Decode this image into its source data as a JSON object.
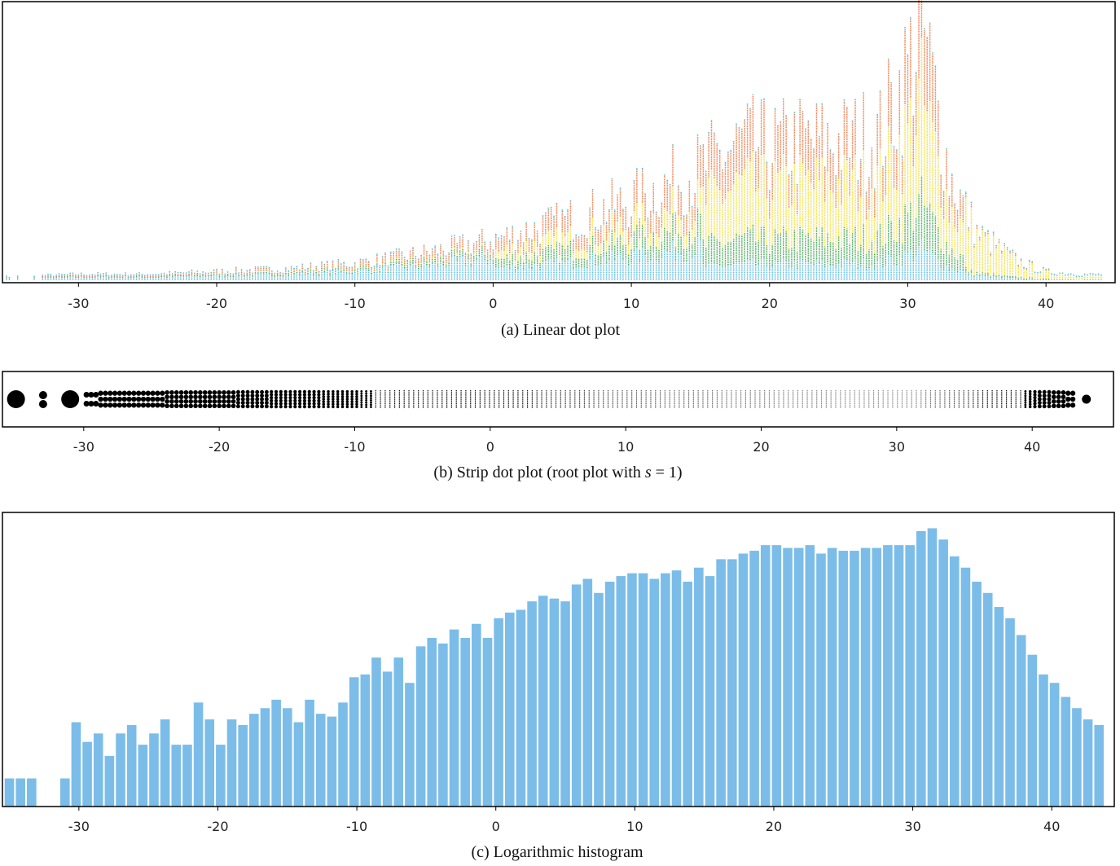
{
  "colors": {
    "frame": "#000000",
    "dot_palette": [
      "#5bc0e8",
      "#4caa5a",
      "#f2e04a",
      "#f08050"
    ],
    "strip_dot": "#000000",
    "hist_bar": "#7bbde8"
  },
  "chart_data": [
    {
      "type": "scatter",
      "subtype": "stacked dot plot",
      "caption": "(a)  Linear dot plot",
      "xlim": [
        -35.5,
        45
      ],
      "x_ticks": [
        -30,
        -20,
        -10,
        0,
        10,
        20,
        30,
        40
      ],
      "x_tick_labels": [
        "-30",
        "-20",
        "-10",
        "0",
        "10",
        "20",
        "30",
        "40"
      ],
      "y_axis_shown": false,
      "stack_height_profile": {
        "x": [
          -35,
          -30,
          -25,
          -20,
          -15,
          -10,
          -5,
          0,
          5,
          10,
          15,
          18,
          20,
          22,
          25,
          28,
          30,
          31,
          33,
          35,
          38,
          40,
          43
        ],
        "relative_height": [
          0.01,
          0.02,
          0.02,
          0.03,
          0.04,
          0.06,
          0.1,
          0.15,
          0.22,
          0.3,
          0.42,
          0.52,
          0.5,
          0.52,
          0.52,
          0.55,
          0.8,
          0.98,
          0.4,
          0.18,
          0.07,
          0.03,
          0.02
        ]
      }
    },
    {
      "type": "scatter",
      "subtype": "strip dot plot",
      "caption_prefix": "(b)  Strip dot plot (root plot with ",
      "caption_var": "s",
      "caption_suffix": " = 1)",
      "xlim": [
        -36,
        46
      ],
      "x_ticks": [
        -30,
        -20,
        -10,
        0,
        10,
        20,
        30,
        40
      ],
      "x_tick_labels": [
        "-30",
        "-20",
        "-10",
        "0",
        "10",
        "20",
        "30",
        "40"
      ],
      "points_per_column_profile": {
        "x": [
          -35,
          -33,
          -31,
          -28,
          -20,
          -15,
          -10,
          -5,
          0,
          10,
          20,
          25,
          30,
          35,
          40,
          44
        ],
        "count": [
          1,
          2,
          1,
          3,
          4,
          6,
          7,
          12,
          18,
          30,
          40,
          45,
          50,
          25,
          6,
          2
        ]
      }
    },
    {
      "type": "bar",
      "subtype": "histogram",
      "caption": "(c)  Logarithmic histogram",
      "y_scale": "log",
      "xlim": [
        -35.5,
        44.5
      ],
      "x_ticks": [
        -30,
        -20,
        -10,
        0,
        10,
        20,
        30,
        40
      ],
      "x_tick_labels": [
        "-30",
        "-20",
        "-10",
        "0",
        "10",
        "20",
        "30",
        "40"
      ],
      "bin_width": 0.8,
      "x": [
        -35,
        -34.2,
        -33.4,
        -32.6,
        -31.8,
        -31,
        -30.2,
        -29.4,
        -28.6,
        -27.8,
        -27,
        -26.2,
        -25.4,
        -24.6,
        -23.8,
        -23,
        -22.2,
        -21.4,
        -20.6,
        -19.8,
        -19,
        -18.2,
        -17.4,
        -16.6,
        -15.8,
        -15,
        -14.2,
        -13.4,
        -12.6,
        -11.8,
        -11,
        -10.2,
        -9.4,
        -8.6,
        -7.8,
        -7,
        -6.2,
        -5.4,
        -4.6,
        -3.8,
        -3,
        -2.2,
        -1.4,
        -0.6,
        0.2,
        1,
        1.8,
        2.6,
        3.4,
        4.2,
        5,
        5.8,
        6.6,
        7.4,
        8.2,
        9,
        9.8,
        10.6,
        11.4,
        12.2,
        13,
        13.8,
        14.6,
        15.4,
        16.2,
        17,
        17.8,
        18.6,
        19.4,
        20.2,
        21,
        21.8,
        22.6,
        23.4,
        24.2,
        25,
        25.8,
        26.6,
        27.4,
        28.2,
        29,
        29.8,
        30.6,
        31.4,
        32.2,
        33,
        33.8,
        34.6,
        35.4,
        36.2,
        37,
        37.8,
        38.6,
        39.4,
        40.2,
        41,
        41.8,
        42.6,
        43.4
      ],
      "relative_height": [
        0.1,
        0.1,
        0.1,
        0,
        0,
        0.1,
        0.3,
        0.23,
        0.26,
        0.18,
        0.26,
        0.29,
        0.22,
        0.26,
        0.31,
        0.22,
        0.22,
        0.37,
        0.31,
        0.22,
        0.31,
        0.29,
        0.33,
        0.35,
        0.38,
        0.35,
        0.3,
        0.38,
        0.33,
        0.32,
        0.37,
        0.46,
        0.47,
        0.53,
        0.48,
        0.53,
        0.44,
        0.57,
        0.6,
        0.58,
        0.63,
        0.6,
        0.65,
        0.6,
        0.67,
        0.69,
        0.7,
        0.73,
        0.75,
        0.74,
        0.73,
        0.79,
        0.81,
        0.76,
        0.8,
        0.82,
        0.83,
        0.83,
        0.81,
        0.83,
        0.84,
        0.8,
        0.85,
        0.82,
        0.88,
        0.88,
        0.9,
        0.91,
        0.93,
        0.93,
        0.92,
        0.92,
        0.93,
        0.9,
        0.92,
        0.91,
        0.91,
        0.92,
        0.92,
        0.93,
        0.93,
        0.93,
        0.98,
        0.99,
        0.95,
        0.89,
        0.85,
        0.8,
        0.76,
        0.71,
        0.67,
        0.61,
        0.54,
        0.47,
        0.44,
        0.39,
        0.35,
        0.31,
        0.29,
        0.1
      ]
    }
  ]
}
